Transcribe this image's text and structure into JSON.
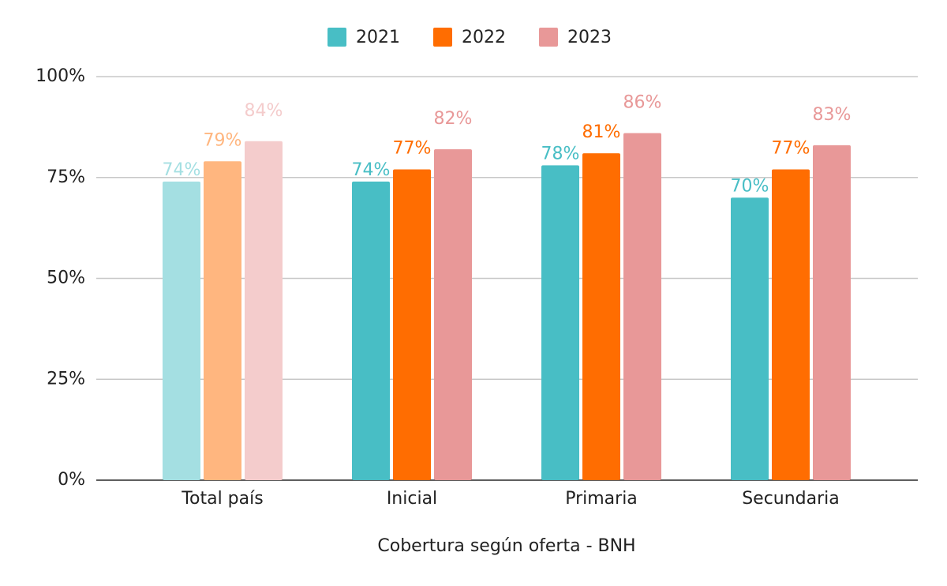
{
  "chart_data": {
    "type": "bar",
    "x_label": "Cobertura según oferta - BNH",
    "categories": [
      "Total país",
      "Inicial",
      "Primaria",
      "Secundaria"
    ],
    "series": [
      {
        "name": "2021",
        "color": "#48bec5",
        "colors": [
          "#a4dfe2",
          "#48bec5",
          "#48bec5",
          "#48bec5"
        ],
        "values": [
          74,
          74,
          78,
          70
        ],
        "value_labels": [
          "74%",
          "74%",
          "78%",
          "70%"
        ]
      },
      {
        "name": "2022",
        "color": "#ff6d01",
        "colors": [
          "#ffb67f",
          "#ff6d01",
          "#ff6d01",
          "#ff6d01"
        ],
        "values": [
          79,
          77,
          81,
          77
        ],
        "value_labels": [
          "79%",
          "77%",
          "81%",
          "77%"
        ]
      },
      {
        "name": "2023",
        "color": "#e89898",
        "colors": [
          "#f4cccc",
          "#e89898",
          "#e89898",
          "#e89898"
        ],
        "values": [
          84,
          82,
          86,
          83
        ],
        "value_labels": [
          "84%",
          "82%",
          "86%",
          "83%"
        ]
      }
    ],
    "ylim": [
      0,
      100
    ],
    "yticks": [
      {
        "value": 0,
        "label": "0%"
      },
      {
        "value": 25,
        "label": "25%"
      },
      {
        "value": 50,
        "label": "50%"
      },
      {
        "value": 75,
        "label": "75%"
      },
      {
        "value": 100,
        "label": "100%"
      }
    ],
    "grid": true,
    "legend": "top"
  }
}
